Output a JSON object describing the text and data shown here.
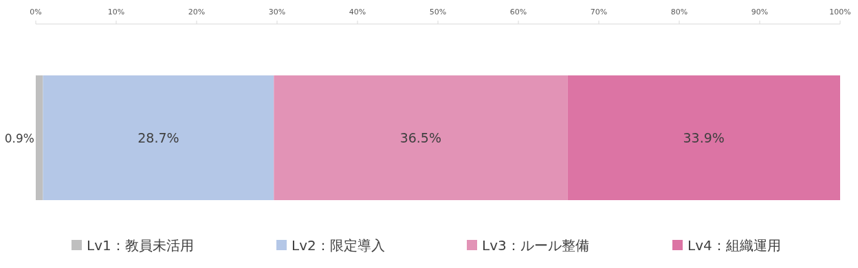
{
  "chart_data": {
    "type": "bar",
    "orientation": "horizontal",
    "stacked": true,
    "categories": [
      null
    ],
    "xlim": [
      0,
      100
    ],
    "xticks": [
      {
        "value": 0,
        "label": "0%"
      },
      {
        "value": 10,
        "label": "10%"
      },
      {
        "value": 20,
        "label": "20%"
      },
      {
        "value": 30,
        "label": "30%"
      },
      {
        "value": 40,
        "label": "40%"
      },
      {
        "value": 50,
        "label": "50%"
      },
      {
        "value": 60,
        "label": "60%"
      },
      {
        "value": 70,
        "label": "70%"
      },
      {
        "value": 80,
        "label": "80%"
      },
      {
        "value": 90,
        "label": "90%"
      },
      {
        "value": 100,
        "label": "100%"
      }
    ],
    "series": [
      {
        "name": "Lv1：教員未活用",
        "color": "#bfbfbf",
        "values": [
          0.9
        ],
        "value_labels": [
          "0.9%"
        ]
      },
      {
        "name": "Lv2：限定導入",
        "color": "#b4c7e7",
        "values": [
          28.7
        ],
        "value_labels": [
          "28.7%"
        ]
      },
      {
        "name": "Lv3：ルール整備",
        "color": "#e293b6",
        "values": [
          36.5
        ],
        "value_labels": [
          "36.5%"
        ]
      },
      {
        "name": "Lv4：組織運用",
        "color": "#dc74a4",
        "values": [
          33.9
        ],
        "value_labels": [
          "33.9%"
        ]
      }
    ],
    "legend": "bottom"
  }
}
